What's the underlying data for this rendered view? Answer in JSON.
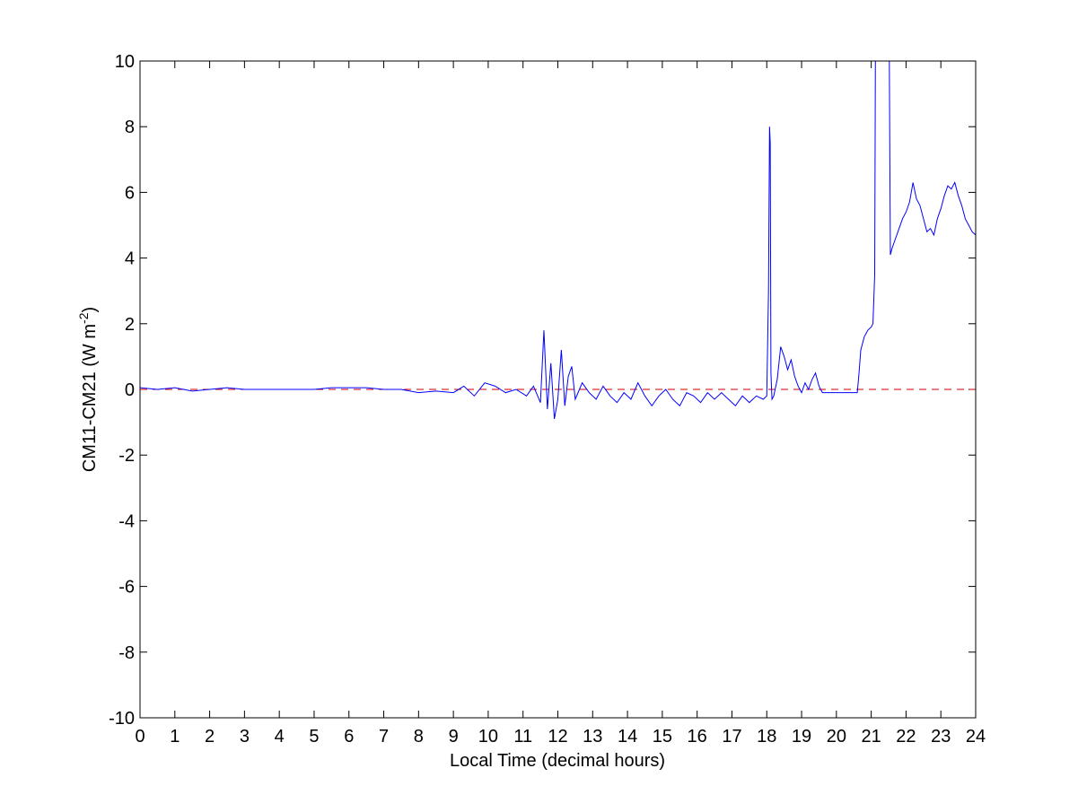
{
  "chart_data": {
    "type": "line",
    "xlabel": "Local Time (decimal hours)",
    "ylabel_main": "CM11-CM21 (W m",
    "ylabel_sup": "-2",
    "ylabel_close": ")",
    "xlim": [
      0,
      24
    ],
    "ylim": [
      -10,
      10
    ],
    "x_ticks": [
      0,
      1,
      2,
      3,
      4,
      5,
      6,
      7,
      8,
      9,
      10,
      11,
      12,
      13,
      14,
      15,
      16,
      17,
      18,
      19,
      20,
      21,
      22,
      23,
      24
    ],
    "y_ticks": [
      -10,
      -8,
      -6,
      -4,
      -2,
      0,
      2,
      4,
      6,
      8,
      10
    ],
    "grid": false,
    "legend": "none",
    "colors": {
      "series": "#0000ff",
      "reference": "#cc0000",
      "axes": "#000000"
    },
    "reference_line": {
      "y": 0,
      "style": "dashed"
    },
    "series": [
      {
        "x": [
          0,
          0.5,
          1,
          1.5,
          2,
          2.5,
          3,
          3.5,
          4,
          4.5,
          5,
          5.5,
          6,
          6.5,
          7,
          7.5,
          8,
          8.5,
          9,
          9.3,
          9.6,
          9.9,
          10.2,
          10.5,
          10.8,
          11.1,
          11.3,
          11.5,
          11.6,
          11.7,
          11.8,
          11.9,
          12.0,
          12.1,
          12.2,
          12.3,
          12.4,
          12.5,
          12.7,
          12.9,
          13.1,
          13.3,
          13.5,
          13.7,
          13.9,
          14.1,
          14.3,
          14.5,
          14.7,
          14.9,
          15.1,
          15.3,
          15.5,
          15.7,
          15.9,
          16.1,
          16.3,
          16.5,
          16.7,
          16.9,
          17.1,
          17.3,
          17.5,
          17.7,
          17.9,
          18.0,
          18.05,
          18.08,
          18.1,
          18.12,
          18.15,
          18.2,
          18.3,
          18.4,
          18.5,
          18.6,
          18.7,
          18.8,
          18.9,
          19.0,
          19.1,
          19.2,
          19.3,
          19.4,
          19.5,
          19.6,
          19.8,
          20.0,
          20.2,
          20.4,
          20.6,
          20.65,
          20.7,
          20.8,
          20.9,
          21.0,
          21.05,
          21.1,
          21.12,
          21.15,
          21.2,
          21.3,
          21.4,
          21.5,
          21.52,
          21.55,
          21.6,
          21.7,
          21.8,
          21.9,
          22.0,
          22.1,
          22.2,
          22.3,
          22.4,
          22.5,
          22.6,
          22.7,
          22.8,
          22.9,
          23.0,
          23.1,
          23.2,
          23.3,
          23.4,
          23.5,
          23.6,
          23.7,
          23.8,
          23.9,
          24.0
        ],
        "values": [
          0.05,
          0.0,
          0.05,
          -0.05,
          0.0,
          0.05,
          0.0,
          0.0,
          0.0,
          0.0,
          0.0,
          0.05,
          0.05,
          0.05,
          0.0,
          0.0,
          -0.1,
          -0.05,
          -0.1,
          0.1,
          -0.2,
          0.2,
          0.1,
          -0.1,
          0.0,
          -0.2,
          0.1,
          -0.4,
          1.8,
          -0.6,
          0.8,
          -0.9,
          -0.3,
          1.2,
          -0.5,
          0.4,
          0.7,
          -0.3,
          0.2,
          -0.1,
          -0.3,
          0.1,
          -0.2,
          -0.4,
          -0.1,
          -0.3,
          0.2,
          -0.2,
          -0.5,
          -0.2,
          0.0,
          -0.3,
          -0.5,
          -0.1,
          -0.2,
          -0.4,
          -0.1,
          -0.3,
          -0.1,
          -0.3,
          -0.5,
          -0.2,
          -0.4,
          -0.2,
          -0.3,
          -0.2,
          3.0,
          8.0,
          7.5,
          0.5,
          -0.3,
          -0.2,
          0.3,
          1.3,
          1.0,
          0.6,
          0.9,
          0.4,
          0.1,
          -0.1,
          0.2,
          0.0,
          0.3,
          0.5,
          0.1,
          -0.1,
          -0.1,
          -0.1,
          -0.1,
          -0.1,
          -0.1,
          0.5,
          1.2,
          1.6,
          1.8,
          1.9,
          2.0,
          3.5,
          10.0,
          10.0,
          10.0,
          10.0,
          10.0,
          10.0,
          10.0,
          4.1,
          4.3,
          4.6,
          4.9,
          5.2,
          5.4,
          5.7,
          6.3,
          5.8,
          5.6,
          5.2,
          4.8,
          4.9,
          4.7,
          5.2,
          5.5,
          5.9,
          6.2,
          6.1,
          6.3,
          5.9,
          5.6,
          5.2,
          5.0,
          4.8,
          4.7
        ]
      }
    ]
  }
}
